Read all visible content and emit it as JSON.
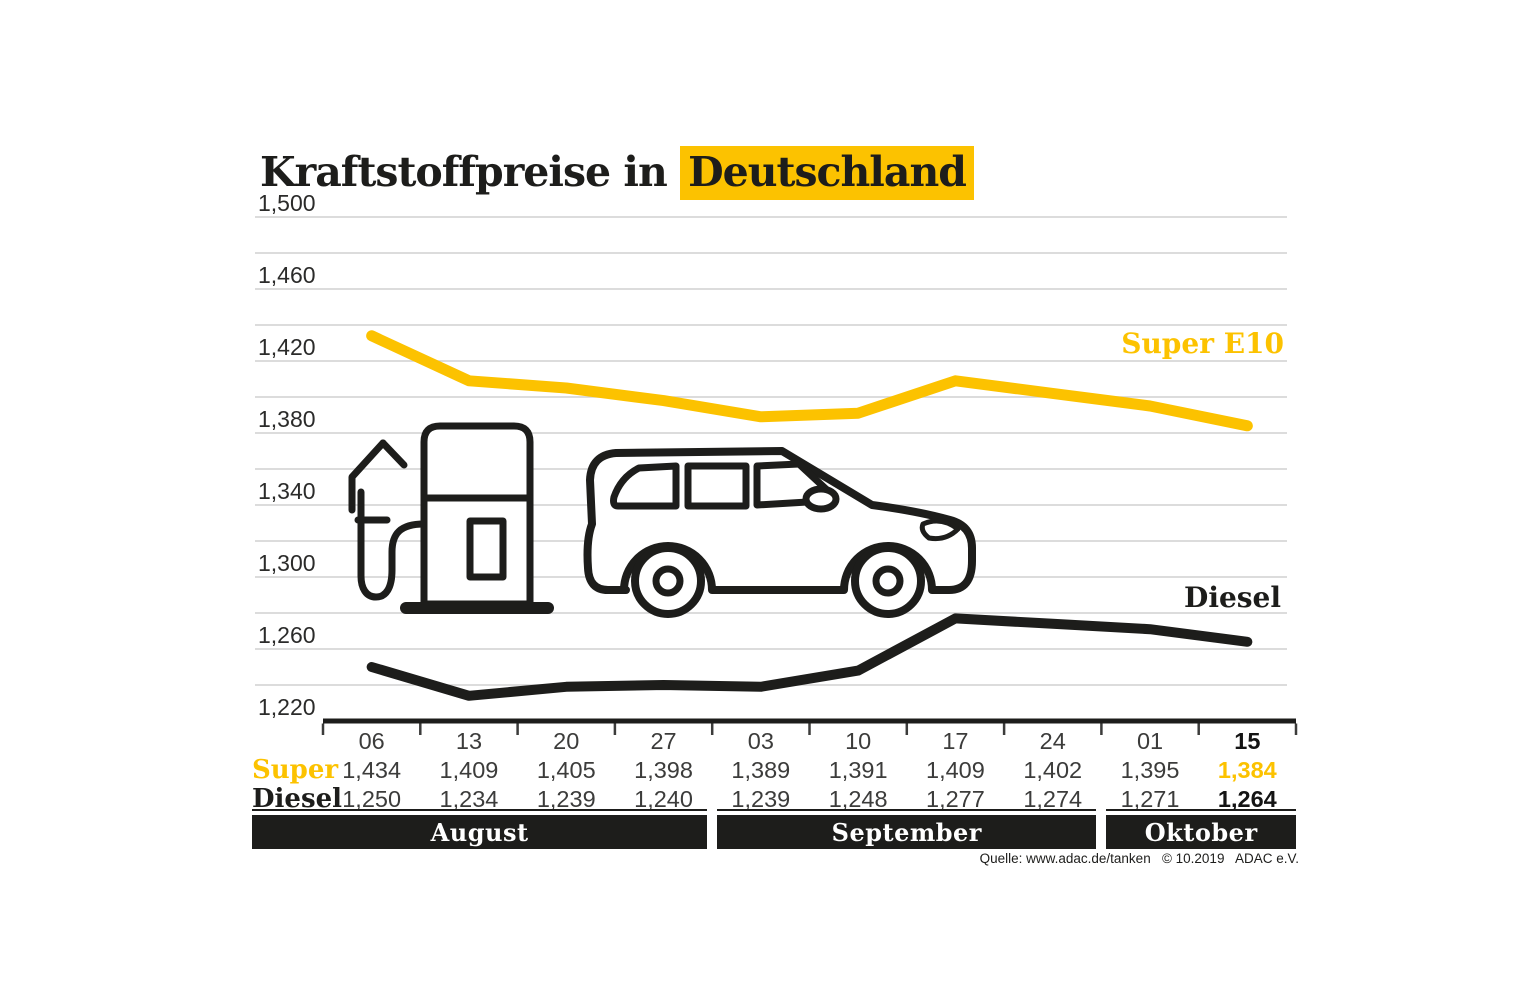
{
  "title": {
    "prefix": "Kraftstoffpreise in",
    "highlight": "Deutschland"
  },
  "colors": {
    "accent_yellow": "#FCC200",
    "ink_black": "#1D1D1B",
    "grid_gray": "#D0D0D0",
    "value_text": "#3C3C3B"
  },
  "icons": [
    "fuel-pump-icon",
    "car-icon"
  ],
  "chart_data": {
    "type": "line",
    "title": "Kraftstoffpreise in Deutschland",
    "x_tick_labels": [
      "06",
      "13",
      "20",
      "27",
      "03",
      "10",
      "17",
      "24",
      "01",
      "15"
    ],
    "month_bands": [
      {
        "label": "August",
        "cols": 4
      },
      {
        "label": "September",
        "cols": 4
      },
      {
        "label": "Oktober",
        "cols": 2
      }
    ],
    "y_axis": {
      "min": 1220,
      "max": 1500,
      "grid_step": 20,
      "tick_values": [
        1500,
        1460,
        1420,
        1380,
        1340,
        1300,
        1260,
        1220
      ],
      "tick_labels": [
        "1,500",
        "1,460",
        "1,420",
        "1,380",
        "1,340",
        "1,300",
        "1,260",
        "1,220"
      ]
    },
    "grid": true,
    "legend_position": "inline-right",
    "series": [
      {
        "name": "Super E10",
        "color": "#FCC200",
        "stroke_width": 11,
        "values": [
          1434,
          1409,
          1405,
          1398,
          1389,
          1391,
          1409,
          1402,
          1395,
          1384
        ],
        "value_labels": [
          "1,434",
          "1,409",
          "1,405",
          "1,398",
          "1,389",
          "1,391",
          "1,409",
          "1,402",
          "1,395",
          "1,384"
        ]
      },
      {
        "name": "Diesel",
        "color": "#1D1D1B",
        "stroke_width": 10,
        "values": [
          1250,
          1234,
          1239,
          1240,
          1239,
          1248,
          1277,
          1274,
          1271,
          1264
        ],
        "value_labels": [
          "1,250",
          "1,234",
          "1,239",
          "1,240",
          "1,239",
          "1,248",
          "1,277",
          "1,274",
          "1,271",
          "1,264"
        ]
      }
    ]
  },
  "table": {
    "super_row_label": "Super",
    "diesel_row_label": "Diesel"
  },
  "source": "Quelle: www.adac.de/tanken   © 10.2019   ADAC e.V."
}
